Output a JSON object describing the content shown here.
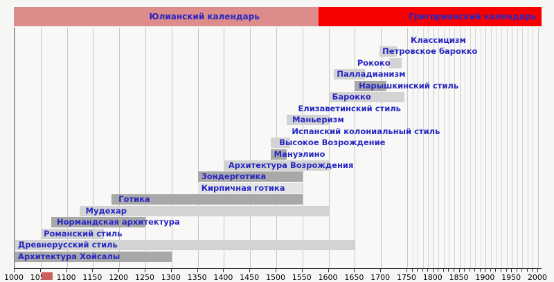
{
  "header": {
    "julian": {
      "label": "Юлианский календарь",
      "start_year": 1000,
      "end_year": 1582,
      "label_center_year": 1364,
      "color": "#dd8b8b"
    },
    "gregorian": {
      "label": "Григорианский календарь",
      "start_year": 1582,
      "end_year": 2008,
      "label_center_year": 1876,
      "color": "#f70000"
    }
  },
  "colors": {
    "label_blue": "#2626c4",
    "bar_light": "#d3d3d3",
    "bar_dark": "#a8a8a8",
    "bar_pale": "#e4e4e4",
    "grid_major": "#c6c6c6",
    "grid_minor": "#d6d6d6",
    "plot_bg": "#f8f8f6",
    "legend_chip": "#cc5f5f"
  },
  "chart_data": {
    "type": "bar",
    "subtype": "timeline-gantt",
    "title": "",
    "xlabel": "",
    "ylabel": "",
    "axis": {
      "min": 1000,
      "max": 2008,
      "major_step": 50,
      "minor_step": 10,
      "minor_from": 1750,
      "minor_to": 2000,
      "tick_labels": [
        1000,
        1050,
        1100,
        1150,
        1200,
        1250,
        1300,
        1350,
        1400,
        1450,
        1500,
        1550,
        1600,
        1650,
        1700,
        1750,
        1800,
        1850,
        1900,
        1950,
        2000
      ]
    },
    "rows": [
      {
        "label": "Классицизм",
        "start": null,
        "end": null,
        "shade": null,
        "label_year": 1754
      },
      {
        "label": "Петровское барокко",
        "start": 1697,
        "end": 1730,
        "shade": "light",
        "label_year": 1700
      },
      {
        "label": "Рококо",
        "start": 1715,
        "end": 1740,
        "shade": "light",
        "label_year": 1652
      },
      {
        "label": "Палладианизм",
        "start": 1610,
        "end": 1670,
        "shade": "light",
        "label_year": 1613
      },
      {
        "label": "Нарышкинский стиль",
        "start": 1650,
        "end": 1710,
        "shade": "dark",
        "label_year": 1655
      },
      {
        "label": "Барокко",
        "start": 1600,
        "end": 1745,
        "shade": "light",
        "label_year": 1604
      },
      {
        "label": "Елизаветинский стиль",
        "start": null,
        "end": null,
        "shade": null,
        "label_year": 1539
      },
      {
        "label": "Маньеризм",
        "start": 1520,
        "end": 1600,
        "shade": "light",
        "label_year": 1528
      },
      {
        "label": "Испанский колониальный стиль",
        "start": null,
        "end": null,
        "shade": null,
        "label_year": 1527
      },
      {
        "label": "Высокое Возрождение",
        "start": 1490,
        "end": 1527,
        "shade": "light",
        "label_year": 1503
      },
      {
        "label": "Мануэлино",
        "start": 1490,
        "end": 1520,
        "shade": "dark",
        "label_year": 1493
      },
      {
        "label": "Архитектура Возрождения",
        "start": 1400,
        "end": 1600,
        "shade": "light",
        "label_year": 1406
      },
      {
        "label": "Зондерготика",
        "start": 1350,
        "end": 1550,
        "shade": "dark",
        "label_year": 1354
      },
      {
        "label": "Кирпичная готика",
        "start": 1350,
        "end": 1550,
        "shade": "pale",
        "label_year": 1354
      },
      {
        "label": "Готика",
        "start": 1185,
        "end": 1550,
        "shade": "dark",
        "label_year": 1196
      },
      {
        "label": "Мудехар",
        "start": 1125,
        "end": 1600,
        "shade": "light",
        "label_year": 1133
      },
      {
        "label": "Нормандская архитектура",
        "start": 1070,
        "end": 1250,
        "shade": "dark",
        "label_year": 1078
      },
      {
        "label": "Романский стиль",
        "start": 1050,
        "end": 1170,
        "shade": "light",
        "label_year": 1053
      },
      {
        "label": "Древнерусский стиль",
        "start": 1000,
        "end": 1650,
        "shade": "light",
        "label_year": 1004
      },
      {
        "label": "Архитектура Хойсалы",
        "start": 1000,
        "end": 1300,
        "shade": "dark",
        "label_year": 1004
      }
    ]
  }
}
